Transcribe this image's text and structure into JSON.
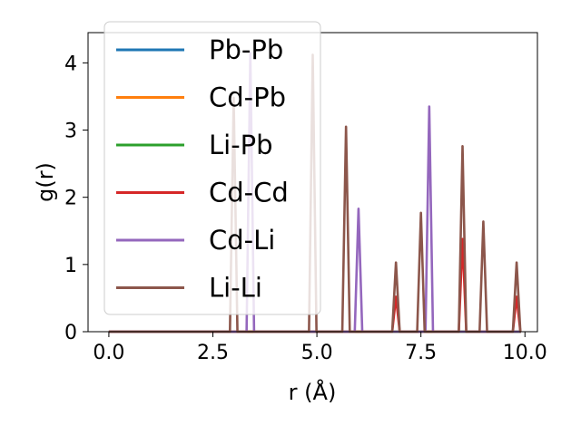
{
  "chart_data": {
    "type": "line",
    "xlabel": "r (Å)",
    "ylabel": "g(r)",
    "xlim": [
      -0.5,
      10.3
    ],
    "ylim": [
      0,
      4.45
    ],
    "x_ticks": [
      "0.0",
      "2.5",
      "5.0",
      "7.5",
      "10.0"
    ],
    "y_ticks": [
      "0",
      "1",
      "2",
      "3",
      "4"
    ],
    "grid": false,
    "legend_position": "top-left",
    "series": [
      {
        "name": "Pb-Pb",
        "color": "#1f77b4",
        "peaks": []
      },
      {
        "name": "Cd-Pb",
        "color": "#ff7f0e",
        "peaks": []
      },
      {
        "name": "Li-Pb",
        "color": "#2ca02c",
        "peaks": []
      },
      {
        "name": "Cd-Cd",
        "color": "#d62728",
        "peaks": [
          {
            "x": 6.9,
            "y": 0.52
          },
          {
            "x": 8.5,
            "y": 1.38
          },
          {
            "x": 9.8,
            "y": 0.52
          }
        ]
      },
      {
        "name": "Cd-Li",
        "color": "#9467bd",
        "peaks": [
          {
            "x": 3.4,
            "y": 4.15
          },
          {
            "x": 6.0,
            "y": 1.83
          },
          {
            "x": 7.7,
            "y": 3.35
          }
        ]
      },
      {
        "name": "Li-Li",
        "color": "#8c564b",
        "peaks": [
          {
            "x": 3.0,
            "y": 3.48
          },
          {
            "x": 4.9,
            "y": 4.12
          },
          {
            "x": 5.7,
            "y": 3.05
          },
          {
            "x": 6.9,
            "y": 1.03
          },
          {
            "x": 7.5,
            "y": 1.77
          },
          {
            "x": 8.5,
            "y": 2.76
          },
          {
            "x": 9.0,
            "y": 1.64
          },
          {
            "x": 9.8,
            "y": 1.03
          }
        ]
      }
    ]
  }
}
